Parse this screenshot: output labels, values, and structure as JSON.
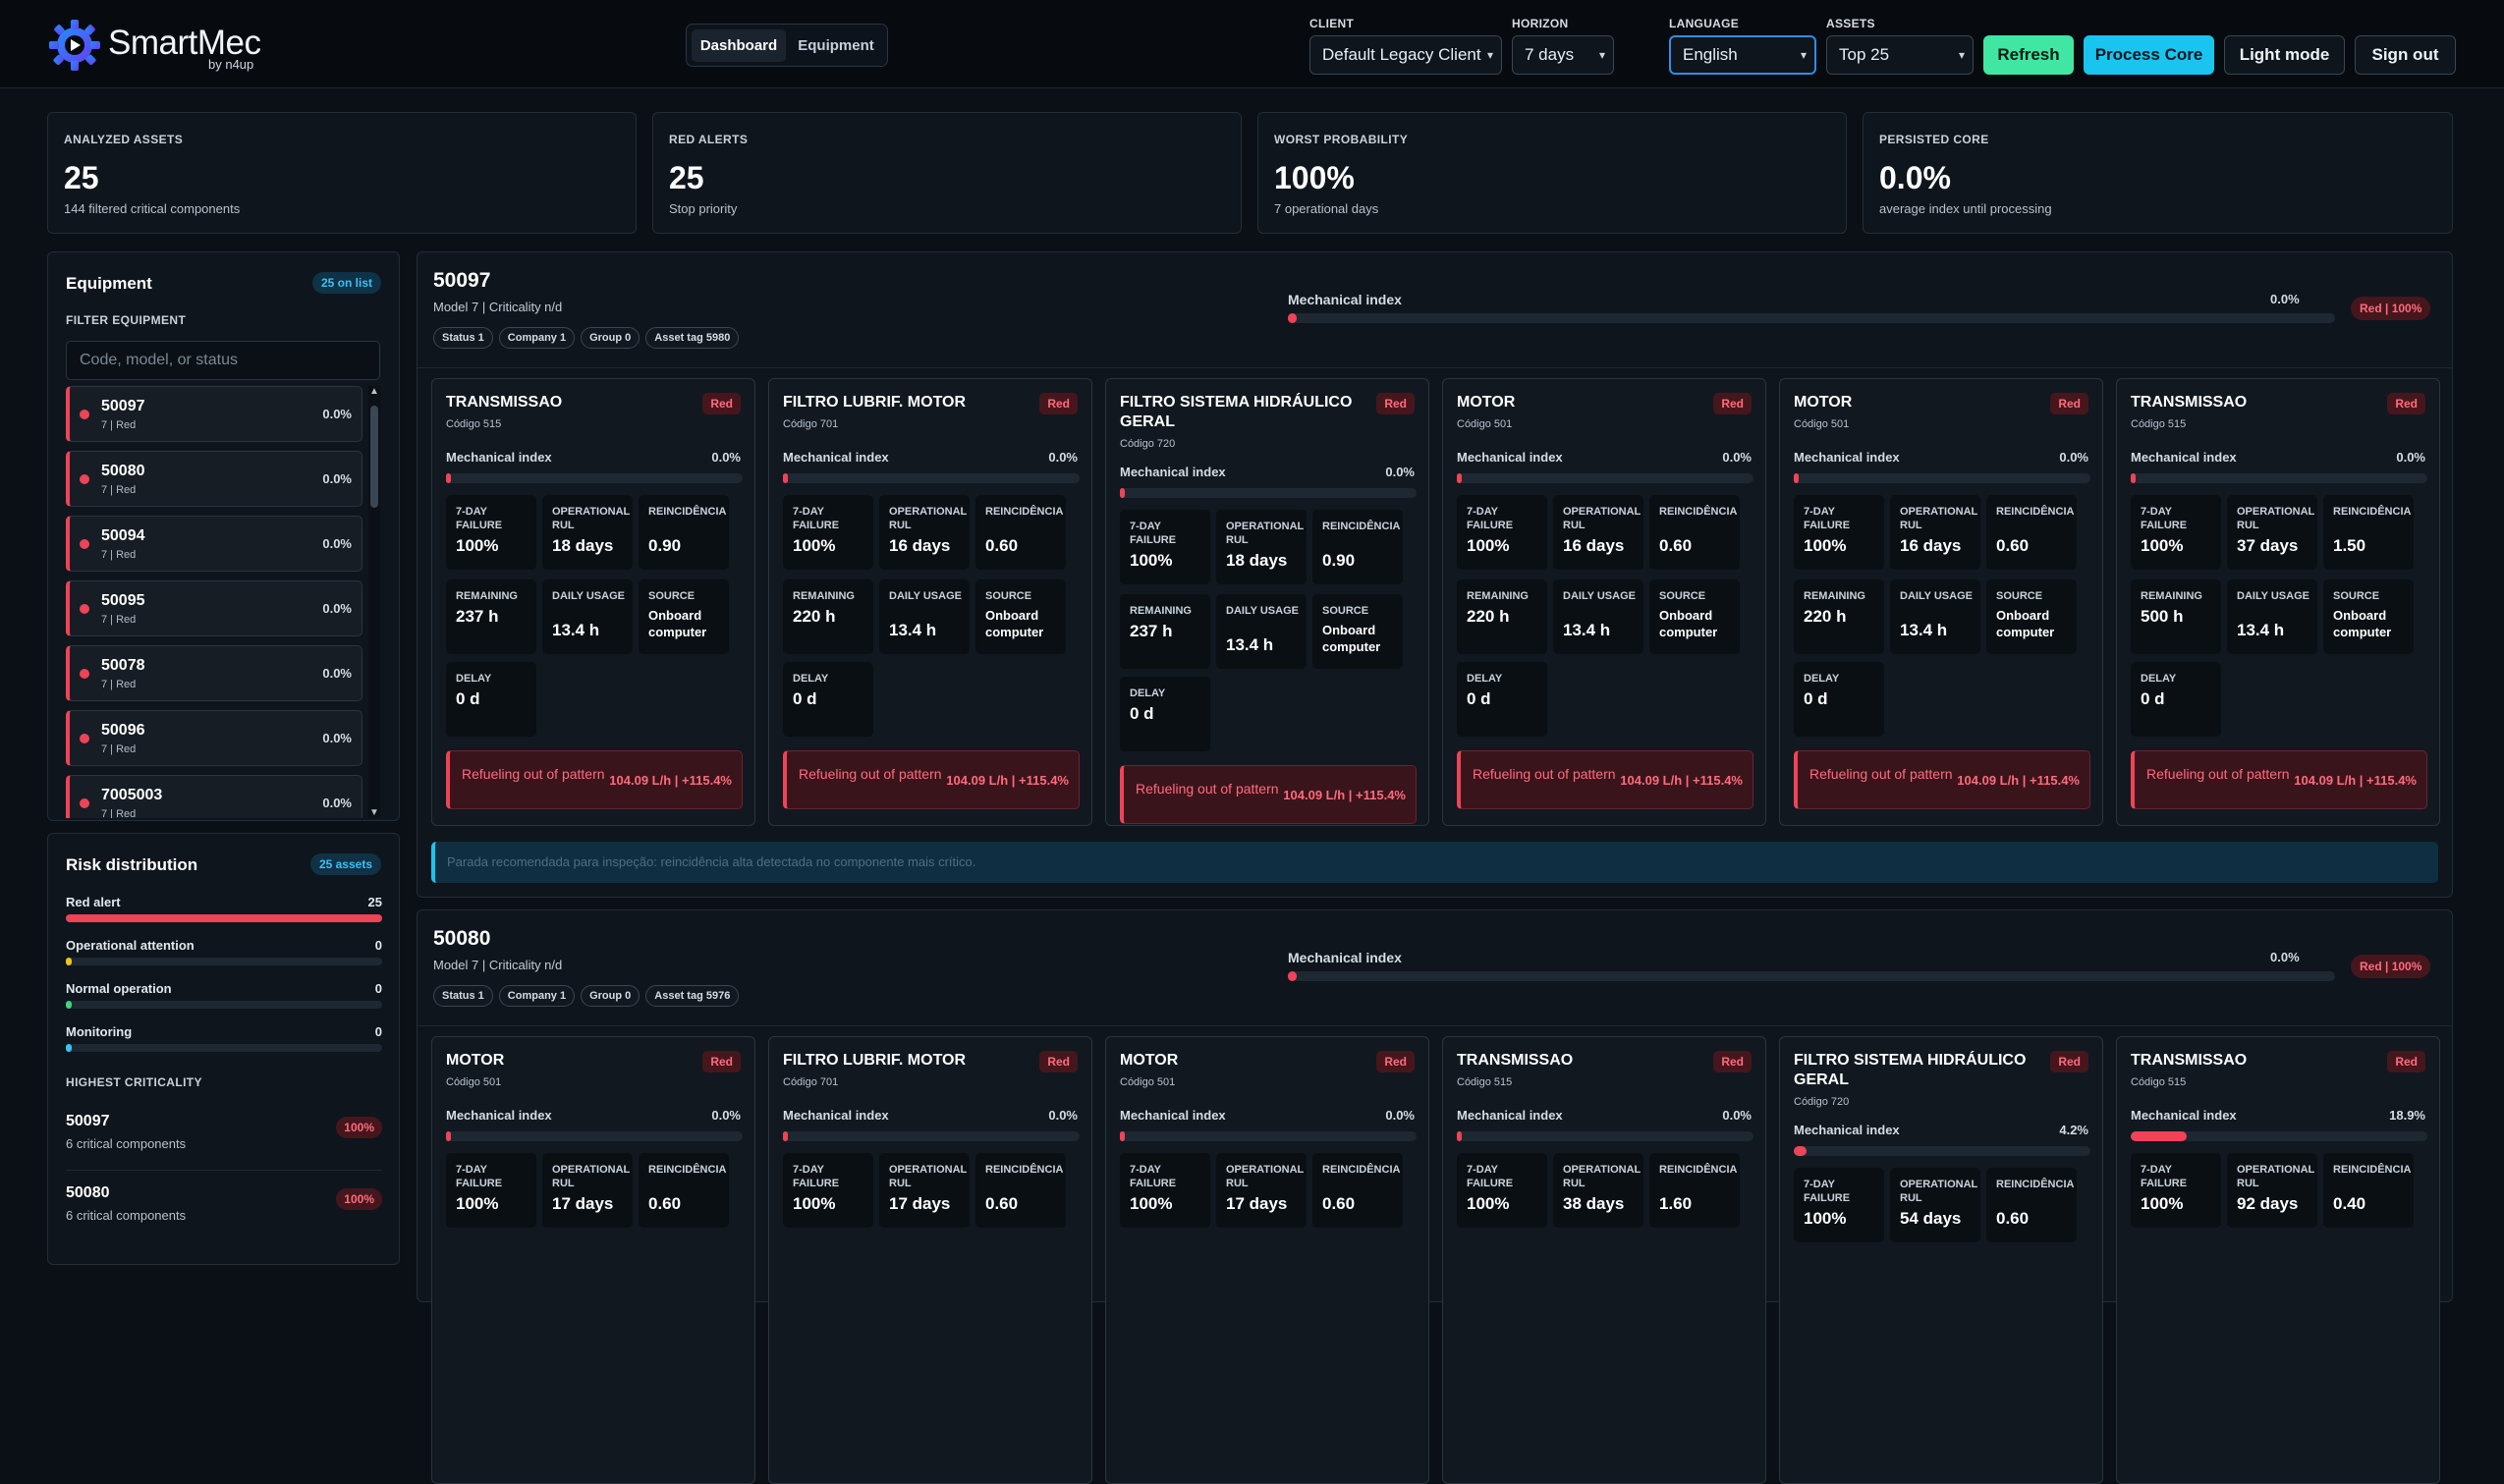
{
  "brand": {
    "name": "SmartMec",
    "by": "by n4up"
  },
  "nav": {
    "tabs": [
      {
        "label": "Dashboard"
      },
      {
        "label": "Equipment"
      }
    ]
  },
  "controls": {
    "client_label": "CLIENT",
    "client_value": "Default Legacy Client",
    "horizon_label": "HORIZON",
    "horizon_value": "7 days",
    "language_label": "LANGUAGE",
    "language_value": "English",
    "assets_label": "ASSETS",
    "assets_value": "Top 25",
    "refresh": "Refresh",
    "process": "Process Core",
    "light": "Light mode",
    "signout": "Sign out"
  },
  "kpis": [
    {
      "title": "ANALYZED ASSETS",
      "value": "25",
      "sub": "144 filtered critical components"
    },
    {
      "title": "RED ALERTS",
      "value": "25",
      "sub": "Stop priority"
    },
    {
      "title": "WORST PROBABILITY",
      "value": "100%",
      "sub": "7 operational days"
    },
    {
      "title": "PERSISTED CORE",
      "value": "0.0%",
      "sub": "average index until processing"
    }
  ],
  "equipment": {
    "title": "Equipment",
    "badge": "25 on list",
    "filter_label": "FILTER EQUIPMENT",
    "filter_placeholder": "Code, model, or status",
    "items": [
      {
        "code": "50097",
        "sub": "7 | Red",
        "pct": "0.0%"
      },
      {
        "code": "50080",
        "sub": "7 | Red",
        "pct": "0.0%"
      },
      {
        "code": "50094",
        "sub": "7 | Red",
        "pct": "0.0%"
      },
      {
        "code": "50095",
        "sub": "7 | Red",
        "pct": "0.0%"
      },
      {
        "code": "50078",
        "sub": "7 | Red",
        "pct": "0.0%"
      },
      {
        "code": "50096",
        "sub": "7 | Red",
        "pct": "0.0%"
      },
      {
        "code": "7005003",
        "sub": "7 | Red",
        "pct": "0.0%"
      }
    ]
  },
  "risk": {
    "title": "Risk distribution",
    "badge": "25 assets",
    "rows": [
      {
        "label": "Red alert",
        "count": "25",
        "fraction": 1.0,
        "color": "#ef4358"
      },
      {
        "label": "Operational attention",
        "count": "0",
        "fraction": 0.0,
        "color": "#f0c419"
      },
      {
        "label": "Normal operation",
        "count": "0",
        "fraction": 0.0,
        "color": "#3fd27f"
      },
      {
        "label": "Monitoring",
        "count": "0",
        "fraction": 0.0,
        "color": "#39c2f5"
      }
    ],
    "highest_label": "HIGHEST CRITICALITY",
    "highest": [
      {
        "code": "50097",
        "sub": "6 critical components",
        "badge": "100%"
      },
      {
        "code": "50080",
        "sub": "6 critical components",
        "badge": "100%"
      }
    ]
  },
  "assets": [
    {
      "code": "50097",
      "model": "Model 7 | Criticality n/d",
      "tags": [
        "Status 1",
        "Company 1",
        "Group 0",
        "Asset tag 5980"
      ],
      "mi_label": "Mechanical index",
      "mi_pct": "0.0%",
      "mi_value": 0.0,
      "status": "Red | 100%",
      "components": [
        {
          "name": "TRANSMISSAO",
          "code": "Código 515",
          "badge": "Red",
          "mi_label": "Mechanical index",
          "mi_pct": "0.0%",
          "mi_value": 0.0,
          "metrics": [
            {
              "l": "7-DAY FAILURE",
              "v": "100%"
            },
            {
              "l": "OPERATIONAL RUL",
              "v": "18 days"
            },
            {
              "l": "REINCIDÊNCIA",
              "v": "0.90"
            },
            {
              "l": "REMAINING",
              "v": "237 h"
            },
            {
              "l": "DAILY USAGE",
              "v": "13.4 h"
            },
            {
              "l": "SOURCE",
              "v": "Onboard computer"
            },
            {
              "l": "DELAY",
              "v": "0 d"
            }
          ],
          "alert_text": "Refueling out of pattern",
          "alert_value": "104.09 L/h | +115.4%"
        },
        {
          "name": "FILTRO LUBRIF. MOTOR",
          "code": "Código 701",
          "badge": "Red",
          "mi_label": "Mechanical index",
          "mi_pct": "0.0%",
          "mi_value": 0.0,
          "metrics": [
            {
              "l": "7-DAY FAILURE",
              "v": "100%"
            },
            {
              "l": "OPERATIONAL RUL",
              "v": "16 days"
            },
            {
              "l": "REINCIDÊNCIA",
              "v": "0.60"
            },
            {
              "l": "REMAINING",
              "v": "220 h"
            },
            {
              "l": "DAILY USAGE",
              "v": "13.4 h"
            },
            {
              "l": "SOURCE",
              "v": "Onboard computer"
            },
            {
              "l": "DELAY",
              "v": "0 d"
            }
          ],
          "alert_text": "Refueling out of pattern",
          "alert_value": "104.09 L/h | +115.4%"
        },
        {
          "name": "FILTRO SISTEMA HIDRÁULICO GERAL",
          "code": "Código 720",
          "badge": "Red",
          "mi_label": "Mechanical index",
          "mi_pct": "0.0%",
          "mi_value": 0.0,
          "metrics": [
            {
              "l": "7-DAY FAILURE",
              "v": "100%"
            },
            {
              "l": "OPERATIONAL RUL",
              "v": "18 days"
            },
            {
              "l": "REINCIDÊNCIA",
              "v": "0.90"
            },
            {
              "l": "REMAINING",
              "v": "237 h"
            },
            {
              "l": "DAILY USAGE",
              "v": "13.4 h"
            },
            {
              "l": "SOURCE",
              "v": "Onboard computer"
            },
            {
              "l": "DELAY",
              "v": "0 d"
            }
          ],
          "alert_text": "Refueling out of pattern",
          "alert_value": "104.09 L/h | +115.4%"
        },
        {
          "name": "MOTOR",
          "code": "Código 501",
          "badge": "Red",
          "mi_label": "Mechanical index",
          "mi_pct": "0.0%",
          "mi_value": 0.0,
          "metrics": [
            {
              "l": "7-DAY FAILURE",
              "v": "100%"
            },
            {
              "l": "OPERATIONAL RUL",
              "v": "16 days"
            },
            {
              "l": "REINCIDÊNCIA",
              "v": "0.60"
            },
            {
              "l": "REMAINING",
              "v": "220 h"
            },
            {
              "l": "DAILY USAGE",
              "v": "13.4 h"
            },
            {
              "l": "SOURCE",
              "v": "Onboard computer"
            },
            {
              "l": "DELAY",
              "v": "0 d"
            }
          ],
          "alert_text": "Refueling out of pattern",
          "alert_value": "104.09 L/h | +115.4%"
        },
        {
          "name": "MOTOR",
          "code": "Código 501",
          "badge": "Red",
          "mi_label": "Mechanical index",
          "mi_pct": "0.0%",
          "mi_value": 0.0,
          "metrics": [
            {
              "l": "7-DAY FAILURE",
              "v": "100%"
            },
            {
              "l": "OPERATIONAL RUL",
              "v": "16 days"
            },
            {
              "l": "REINCIDÊNCIA",
              "v": "0.60"
            },
            {
              "l": "REMAINING",
              "v": "220 h"
            },
            {
              "l": "DAILY USAGE",
              "v": "13.4 h"
            },
            {
              "l": "SOURCE",
              "v": "Onboard computer"
            },
            {
              "l": "DELAY",
              "v": "0 d"
            }
          ],
          "alert_text": "Refueling out of pattern",
          "alert_value": "104.09 L/h | +115.4%"
        },
        {
          "name": "TRANSMISSAO",
          "code": "Código 515",
          "badge": "Red",
          "mi_label": "Mechanical index",
          "mi_pct": "0.0%",
          "mi_value": 0.0,
          "metrics": [
            {
              "l": "7-DAY FAILURE",
              "v": "100%"
            },
            {
              "l": "OPERATIONAL RUL",
              "v": "37 days"
            },
            {
              "l": "REINCIDÊNCIA",
              "v": "1.50"
            },
            {
              "l": "REMAINING",
              "v": "500 h"
            },
            {
              "l": "DAILY USAGE",
              "v": "13.4 h"
            },
            {
              "l": "SOURCE",
              "v": "Onboard computer"
            },
            {
              "l": "DELAY",
              "v": "0 d"
            }
          ],
          "alert_text": "Refueling out of pattern",
          "alert_value": "104.09 L/h | +115.4%"
        }
      ],
      "info": "Parada recomendada para inspeção: reincidência alta detectada no componente mais crítico."
    },
    {
      "code": "50080",
      "model": "Model 7 | Criticality n/d",
      "tags": [
        "Status 1",
        "Company 1",
        "Group 0",
        "Asset tag 5976"
      ],
      "mi_label": "Mechanical index",
      "mi_pct": "0.0%",
      "mi_value": 0.0,
      "status": "Red | 100%",
      "components": [
        {
          "name": "MOTOR",
          "code": "Código 501",
          "badge": "Red",
          "mi_label": "Mechanical index",
          "mi_pct": "0.0%",
          "mi_value": 0.0,
          "metrics": [
            {
              "l": "7-DAY FAILURE",
              "v": "100%"
            },
            {
              "l": "OPERATIONAL RUL",
              "v": "17 days"
            },
            {
              "l": "REINCIDÊNCIA",
              "v": "0.60"
            }
          ]
        },
        {
          "name": "FILTRO LUBRIF. MOTOR",
          "code": "Código 701",
          "badge": "Red",
          "mi_label": "Mechanical index",
          "mi_pct": "0.0%",
          "mi_value": 0.0,
          "metrics": [
            {
              "l": "7-DAY FAILURE",
              "v": "100%"
            },
            {
              "l": "OPERATIONAL RUL",
              "v": "17 days"
            },
            {
              "l": "REINCIDÊNCIA",
              "v": "0.60"
            }
          ]
        },
        {
          "name": "MOTOR",
          "code": "Código 501",
          "badge": "Red",
          "mi_label": "Mechanical index",
          "mi_pct": "0.0%",
          "mi_value": 0.0,
          "metrics": [
            {
              "l": "7-DAY FAILURE",
              "v": "100%"
            },
            {
              "l": "OPERATIONAL RUL",
              "v": "17 days"
            },
            {
              "l": "REINCIDÊNCIA",
              "v": "0.60"
            }
          ]
        },
        {
          "name": "TRANSMISSAO",
          "code": "Código 515",
          "badge": "Red",
          "mi_label": "Mechanical index",
          "mi_pct": "0.0%",
          "mi_value": 0.0,
          "metrics": [
            {
              "l": "7-DAY FAILURE",
              "v": "100%"
            },
            {
              "l": "OPERATIONAL RUL",
              "v": "38 days"
            },
            {
              "l": "REINCIDÊNCIA",
              "v": "1.60"
            }
          ]
        },
        {
          "name": "FILTRO SISTEMA HIDRÁULICO GERAL",
          "code": "Código 720",
          "badge": "Red",
          "mi_label": "Mechanical index",
          "mi_pct": "4.2%",
          "mi_value": 0.042,
          "metrics": [
            {
              "l": "7-DAY FAILURE",
              "v": "100%"
            },
            {
              "l": "OPERATIONAL RUL",
              "v": "54 days"
            },
            {
              "l": "REINCIDÊNCIA",
              "v": "0.60"
            }
          ]
        },
        {
          "name": "TRANSMISSAO",
          "code": "Código 515",
          "badge": "Red",
          "mi_label": "Mechanical index",
          "mi_pct": "18.9%",
          "mi_value": 0.189,
          "metrics": [
            {
              "l": "7-DAY FAILURE",
              "v": "100%"
            },
            {
              "l": "OPERATIONAL RUL",
              "v": "92 days"
            },
            {
              "l": "REINCIDÊNCIA",
              "v": "0.40"
            }
          ]
        }
      ]
    }
  ]
}
